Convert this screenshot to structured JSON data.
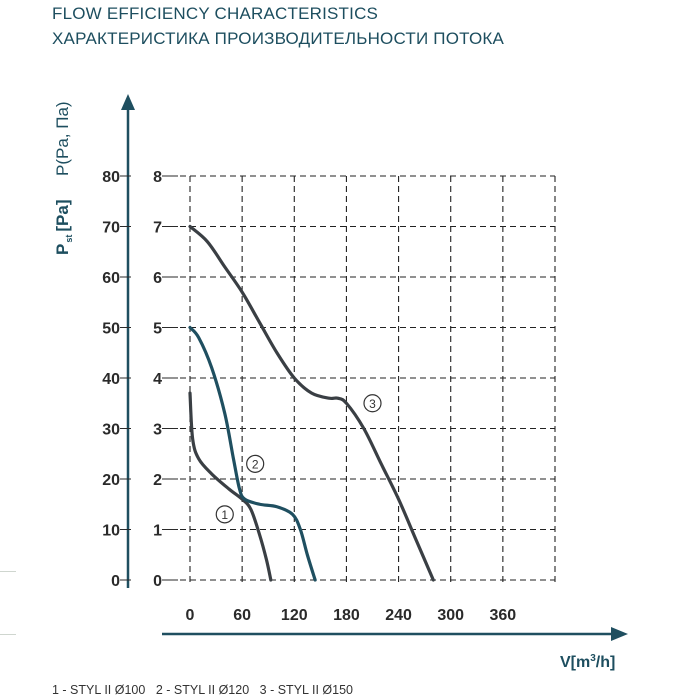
{
  "titles": {
    "en": "FLOW EFFICIENCY CHARACTERISTICS",
    "ru": "ХАРАКТЕРИСТИКА ПРОИЗВОДИТЕЛЬНОСТИ ПОТОКА"
  },
  "legend": [
    "1 - STYL II Ø100",
    "2 - STYL II Ø120",
    "3 - STYL II Ø150"
  ],
  "colors": {
    "title": "#1d4e5f",
    "axis_label": "#1d4e5f",
    "curve_dark": "#3a3f44",
    "curve_accent": "#1f4f60",
    "grid": "#222222",
    "ticks": "#2a2a2a"
  },
  "chart_data": {
    "type": "line",
    "title": "",
    "xlabel": "V[m³/h]",
    "ylabel_left_main": "P",
    "ylabel_left_sub": "st",
    "ylabel_left_unit": "[Pa]",
    "ylabel_right": "P(Pa, Па)",
    "x_ticks": [
      0,
      60,
      120,
      180,
      240,
      300,
      360
    ],
    "y_ticks_pa": [
      0,
      10,
      20,
      30,
      40,
      50,
      60,
      70,
      80
    ],
    "y_ticks_scaled": [
      0,
      1,
      2,
      3,
      4,
      5,
      6,
      7,
      8
    ],
    "xlim": [
      0,
      420
    ],
    "ylim": [
      0,
      80
    ],
    "grid": true,
    "grid_style": "dashed",
    "series": [
      {
        "marker": "1",
        "color": "#3a3f44",
        "label_at": [
          40,
          13
        ],
        "points": [
          [
            0,
            37
          ],
          [
            3,
            28
          ],
          [
            10,
            24
          ],
          [
            25,
            21
          ],
          [
            45,
            18
          ],
          [
            60,
            16
          ],
          [
            70,
            14
          ],
          [
            80,
            9
          ],
          [
            88,
            4
          ],
          [
            93,
            0
          ]
        ]
      },
      {
        "marker": "2",
        "color": "#1f4f60",
        "label_at": [
          75,
          23
        ],
        "points": [
          [
            0,
            50
          ],
          [
            10,
            48
          ],
          [
            25,
            42
          ],
          [
            40,
            33
          ],
          [
            50,
            24
          ],
          [
            57,
            18
          ],
          [
            63,
            16
          ],
          [
            80,
            15
          ],
          [
            100,
            14.5
          ],
          [
            118,
            13
          ],
          [
            127,
            10
          ],
          [
            135,
            5
          ],
          [
            144,
            0
          ]
        ]
      },
      {
        "marker": "3",
        "color": "#3a3f44",
        "label_at": [
          210,
          35
        ],
        "points": [
          [
            0,
            70
          ],
          [
            20,
            67
          ],
          [
            40,
            62
          ],
          [
            60,
            57
          ],
          [
            80,
            51
          ],
          [
            100,
            45
          ],
          [
            120,
            40
          ],
          [
            140,
            37
          ],
          [
            160,
            36
          ],
          [
            170,
            36
          ],
          [
            180,
            35
          ],
          [
            200,
            30
          ],
          [
            220,
            23
          ],
          [
            240,
            16
          ],
          [
            260,
            8
          ],
          [
            280,
            0
          ]
        ]
      }
    ]
  }
}
